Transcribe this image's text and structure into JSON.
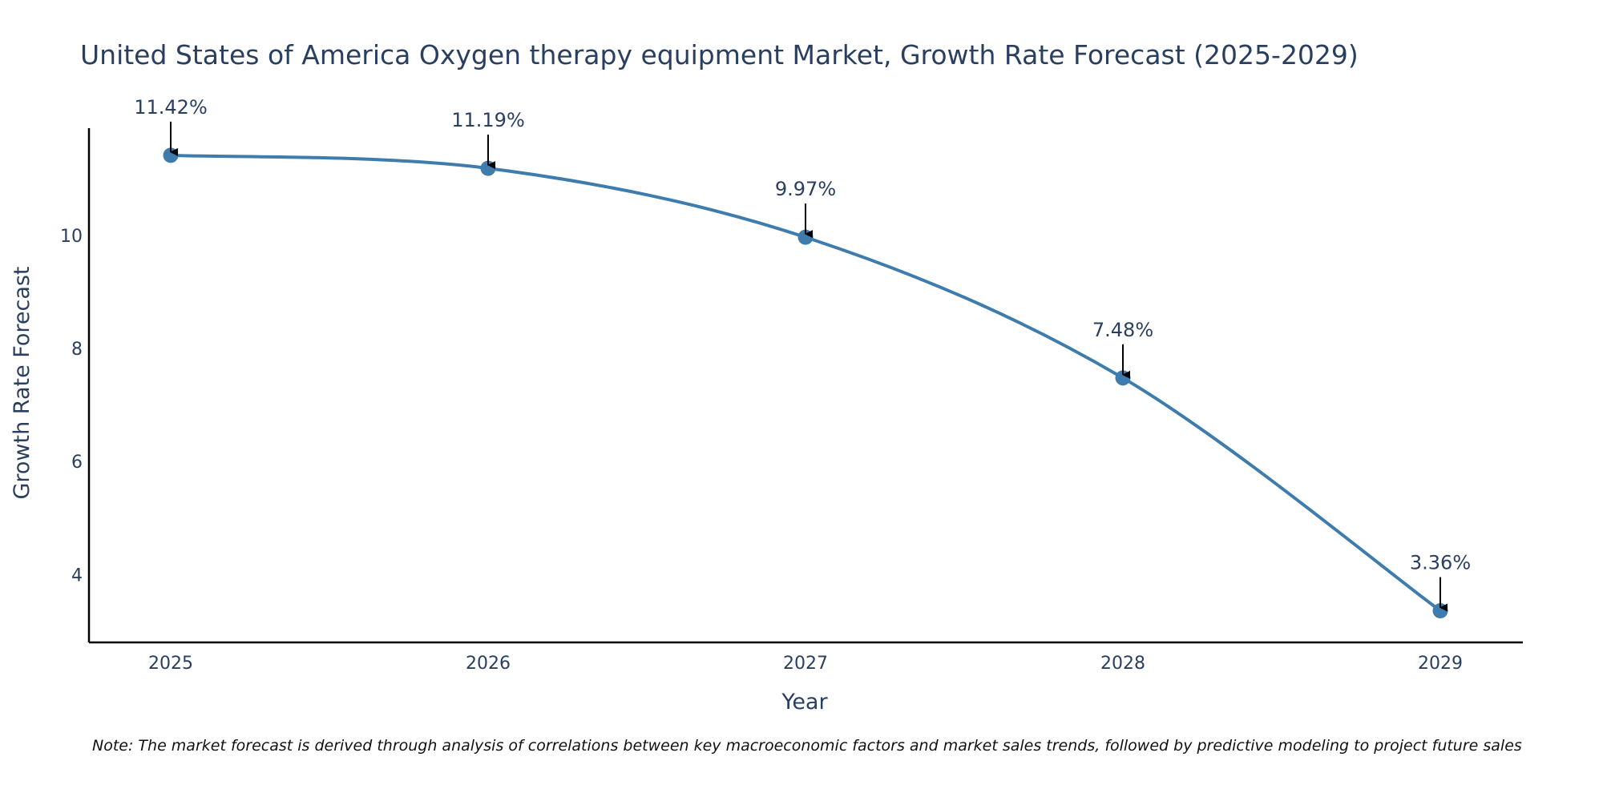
{
  "chart_data": {
    "type": "line",
    "title": "United States of America Oxygen therapy equipment Market, Growth Rate Forecast (2025-2029)",
    "xlabel": "Year",
    "ylabel": "Growth Rate Forecast",
    "categories": [
      "2025",
      "2026",
      "2027",
      "2028",
      "2029"
    ],
    "values": [
      11.42,
      11.19,
      9.97,
      7.48,
      3.36
    ],
    "data_labels": [
      "11.42%",
      "11.19%",
      "9.97%",
      "7.48%",
      "3.36%"
    ],
    "yticks": [
      4,
      6,
      8,
      10
    ],
    "ylim": [
      2.8,
      11.9
    ],
    "grid": false,
    "line_color": "#3d7cad",
    "axis_color": "#000000",
    "text_color": "#2a3f5f"
  },
  "note": "Note: The market forecast is derived through analysis of correlations between key macroeconomic factors and market sales trends, followed by predictive modeling to project future sales"
}
